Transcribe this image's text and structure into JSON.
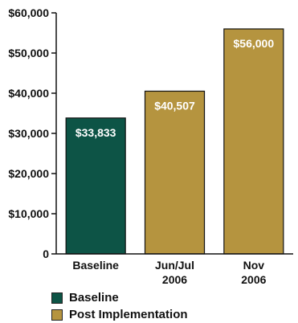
{
  "chart_data": {
    "type": "bar",
    "categories": [
      {
        "line1": "Baseline",
        "line2": ""
      },
      {
        "line1": "Jun/Jul",
        "line2": "2006"
      },
      {
        "line1": "Nov",
        "line2": "2006"
      }
    ],
    "values": [
      33833,
      40507,
      56000
    ],
    "data_labels": [
      "$33,833",
      "$40,507",
      "$56,000"
    ],
    "bar_series": [
      "Baseline",
      "Post Implementation",
      "Post Implementation"
    ],
    "ylim": [
      0,
      60000
    ],
    "yticks": [
      0,
      10000,
      20000,
      30000,
      40000,
      50000,
      60000
    ],
    "ytick_labels": [
      "0",
      "$10,000",
      "$20,000",
      "$30,000",
      "$40,000",
      "$50,000",
      "$60,000"
    ],
    "title": "",
    "xlabel": "",
    "ylabel": "",
    "grid": false,
    "legend_position": "bottom-left",
    "series": [
      {
        "name": "Baseline",
        "color": "#0d5446"
      },
      {
        "name": "Post Implementation",
        "color": "#b5943f"
      }
    ]
  }
}
